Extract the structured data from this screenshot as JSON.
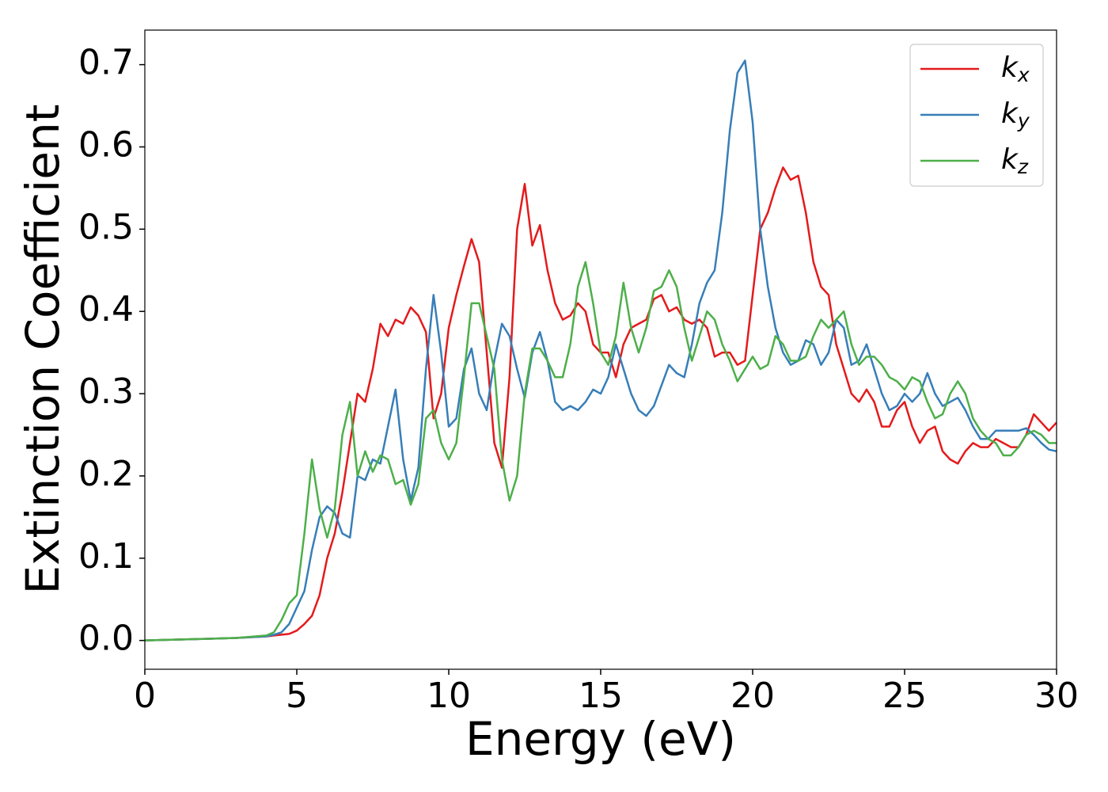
{
  "chart_data": {
    "type": "line",
    "xlabel": "Energy (eV)",
    "ylabel": "Extinction Coefficient",
    "x": [
      0,
      1,
      2,
      3,
      4,
      4.25,
      4.5,
      4.75,
      5,
      5.25,
      5.5,
      5.75,
      6,
      6.25,
      6.5,
      6.75,
      7,
      7.25,
      7.5,
      7.75,
      8,
      8.25,
      8.5,
      8.75,
      9,
      9.25,
      9.5,
      9.75,
      10,
      10.25,
      10.5,
      10.75,
      11,
      11.25,
      11.5,
      11.75,
      12,
      12.25,
      12.5,
      12.75,
      13,
      13.25,
      13.5,
      13.75,
      14,
      14.25,
      14.5,
      14.75,
      15,
      15.25,
      15.5,
      15.75,
      16,
      16.25,
      16.5,
      16.75,
      17,
      17.25,
      17.5,
      17.75,
      18,
      18.25,
      18.5,
      18.75,
      19,
      19.25,
      19.5,
      19.75,
      20,
      20.25,
      20.5,
      20.75,
      21,
      21.25,
      21.5,
      21.75,
      22,
      22.25,
      22.5,
      22.75,
      23,
      23.25,
      23.5,
      23.75,
      24,
      24.25,
      24.5,
      24.75,
      25,
      25.25,
      25.5,
      25.75,
      26,
      26.25,
      26.5,
      26.75,
      27,
      27.25,
      27.5,
      27.75,
      28,
      28.25,
      28.5,
      28.75,
      29,
      29.25,
      29.5,
      29.75,
      30
    ],
    "series": [
      {
        "name": "kx",
        "color": "#e41a1c",
        "values": [
          0,
          0.001,
          0.002,
          0.003,
          0.005,
          0.006,
          0.007,
          0.008,
          0.012,
          0.02,
          0.03,
          0.055,
          0.1,
          0.13,
          0.18,
          0.24,
          0.3,
          0.29,
          0.33,
          0.385,
          0.37,
          0.39,
          0.385,
          0.405,
          0.395,
          0.375,
          0.27,
          0.3,
          0.38,
          0.42,
          0.455,
          0.488,
          0.46,
          0.35,
          0.24,
          0.21,
          0.32,
          0.5,
          0.555,
          0.48,
          0.505,
          0.45,
          0.41,
          0.39,
          0.395,
          0.41,
          0.4,
          0.36,
          0.35,
          0.35,
          0.32,
          0.36,
          0.38,
          0.385,
          0.39,
          0.415,
          0.42,
          0.4,
          0.405,
          0.39,
          0.385,
          0.39,
          0.38,
          0.345,
          0.35,
          0.35,
          0.335,
          0.34,
          0.42,
          0.5,
          0.52,
          0.55,
          0.575,
          0.56,
          0.565,
          0.52,
          0.46,
          0.43,
          0.42,
          0.36,
          0.33,
          0.3,
          0.29,
          0.305,
          0.29,
          0.26,
          0.26,
          0.28,
          0.29,
          0.26,
          0.24,
          0.255,
          0.26,
          0.23,
          0.22,
          0.215,
          0.23,
          0.24,
          0.235,
          0.235,
          0.245,
          0.24,
          0.235,
          0.235,
          0.25,
          0.275,
          0.265,
          0.255,
          0.265
        ]
      },
      {
        "name": "ky",
        "color": "#377eb8",
        "values": [
          0,
          0.001,
          0.002,
          0.003,
          0.005,
          0.007,
          0.01,
          0.02,
          0.04,
          0.06,
          0.11,
          0.15,
          0.163,
          0.155,
          0.13,
          0.125,
          0.2,
          0.195,
          0.22,
          0.215,
          0.26,
          0.305,
          0.22,
          0.17,
          0.21,
          0.33,
          0.42,
          0.35,
          0.26,
          0.27,
          0.33,
          0.355,
          0.3,
          0.28,
          0.34,
          0.385,
          0.37,
          0.33,
          0.295,
          0.35,
          0.375,
          0.34,
          0.29,
          0.28,
          0.285,
          0.28,
          0.29,
          0.305,
          0.3,
          0.32,
          0.36,
          0.33,
          0.3,
          0.28,
          0.273,
          0.285,
          0.31,
          0.335,
          0.325,
          0.32,
          0.36,
          0.41,
          0.435,
          0.45,
          0.52,
          0.62,
          0.69,
          0.705,
          0.63,
          0.5,
          0.43,
          0.38,
          0.35,
          0.335,
          0.34,
          0.365,
          0.36,
          0.335,
          0.35,
          0.39,
          0.38,
          0.335,
          0.34,
          0.36,
          0.33,
          0.3,
          0.28,
          0.285,
          0.3,
          0.29,
          0.3,
          0.325,
          0.3,
          0.285,
          0.29,
          0.295,
          0.28,
          0.26,
          0.245,
          0.245,
          0.255,
          0.255,
          0.255,
          0.255,
          0.258,
          0.25,
          0.24,
          0.232,
          0.23
        ]
      },
      {
        "name": "kz",
        "color": "#4daf4a",
        "values": [
          0,
          0.001,
          0.002,
          0.003,
          0.006,
          0.01,
          0.025,
          0.045,
          0.055,
          0.13,
          0.22,
          0.16,
          0.125,
          0.16,
          0.25,
          0.29,
          0.2,
          0.23,
          0.205,
          0.225,
          0.22,
          0.19,
          0.195,
          0.165,
          0.19,
          0.27,
          0.28,
          0.24,
          0.22,
          0.24,
          0.32,
          0.41,
          0.41,
          0.37,
          0.33,
          0.22,
          0.17,
          0.2,
          0.3,
          0.355,
          0.355,
          0.34,
          0.32,
          0.32,
          0.36,
          0.43,
          0.46,
          0.41,
          0.35,
          0.335,
          0.37,
          0.435,
          0.38,
          0.35,
          0.38,
          0.425,
          0.43,
          0.45,
          0.43,
          0.38,
          0.34,
          0.37,
          0.4,
          0.39,
          0.36,
          0.34,
          0.315,
          0.33,
          0.345,
          0.33,
          0.335,
          0.37,
          0.36,
          0.34,
          0.34,
          0.345,
          0.37,
          0.39,
          0.38,
          0.39,
          0.4,
          0.36,
          0.335,
          0.345,
          0.345,
          0.335,
          0.32,
          0.315,
          0.305,
          0.32,
          0.315,
          0.29,
          0.27,
          0.275,
          0.3,
          0.315,
          0.3,
          0.27,
          0.255,
          0.245,
          0.24,
          0.225,
          0.225,
          0.235,
          0.25,
          0.255,
          0.25,
          0.24,
          0.24
        ]
      }
    ],
    "xlim": [
      0,
      30
    ],
    "xticks": [
      0,
      5,
      10,
      15,
      20,
      25,
      30
    ],
    "ylim": [
      -0.035,
      0.742
    ],
    "yticks": [
      {
        "value": 0,
        "label": "0.0"
      },
      0.1,
      0.2,
      0.3,
      0.4,
      0.5,
      0.6,
      0.7
    ],
    "grid": false,
    "legend": "upper right"
  }
}
